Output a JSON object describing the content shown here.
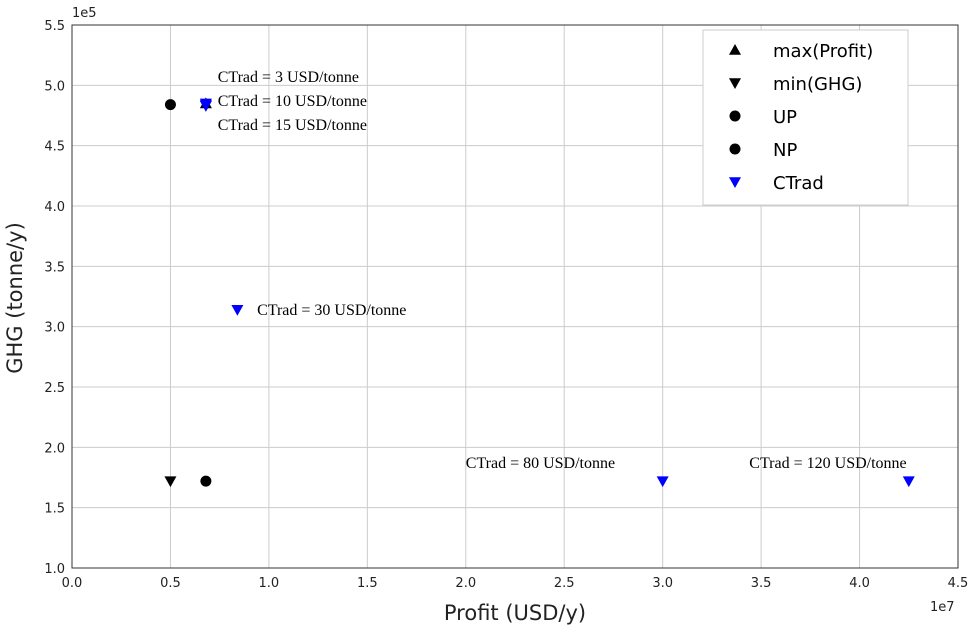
{
  "chart_data": {
    "type": "scatter",
    "xlabel": "Profit (USD/y)",
    "ylabel": "GHG (tonne/y)",
    "x_offset_label": "1e7",
    "y_offset_label": "1e5",
    "xlim": [
      0,
      4.5
    ],
    "ylim": [
      1.0,
      5.5
    ],
    "x_ticks": [
      "0.0",
      "0.5",
      "1.0",
      "1.5",
      "2.0",
      "2.5",
      "3.0",
      "3.5",
      "4.0",
      "4.5"
    ],
    "y_ticks": [
      "1.0",
      "1.5",
      "2.0",
      "2.5",
      "3.0",
      "3.5",
      "4.0",
      "4.5",
      "5.0",
      "5.5"
    ],
    "grid": true,
    "legend_position": "top-right",
    "series": [
      {
        "name": "max(Profit)",
        "marker": "triangle-up",
        "color": "#000000",
        "points": [
          [
            0.68,
            4.85
          ]
        ]
      },
      {
        "name": "min(GHG)",
        "marker": "triangle-down",
        "color": "#000000",
        "points": [
          [
            0.5,
            1.72
          ]
        ]
      },
      {
        "name": "UP",
        "marker": "circle",
        "color": "#000000",
        "points": [
          [
            0.5,
            4.84
          ]
        ]
      },
      {
        "name": "NP",
        "marker": "circle",
        "color": "#000000",
        "points": [
          [
            0.68,
            1.72
          ]
        ]
      },
      {
        "name": "CTrad",
        "marker": "triangle-down",
        "color": "#0000ff",
        "points": [
          [
            0.68,
            4.85
          ],
          [
            0.68,
            4.84
          ],
          [
            0.68,
            4.83
          ],
          [
            0.84,
            3.14
          ],
          [
            3.0,
            1.72
          ],
          [
            4.25,
            1.72
          ]
        ]
      }
    ],
    "annotations": [
      {
        "text": "CTrad = 3 USD/tonne",
        "x": 0.74,
        "y": 5.07
      },
      {
        "text": "CTrad = 10 USD/tonne",
        "x": 0.74,
        "y": 4.87
      },
      {
        "text": "CTrad = 15 USD/tonne",
        "x": 0.74,
        "y": 4.67
      },
      {
        "text": "CTrad = 30 USD/tonne",
        "x": 0.94,
        "y": 3.14
      },
      {
        "text": "CTrad = 80 USD/tonne",
        "x": 2.0,
        "y": 1.87
      },
      {
        "text": "CTrad = 120 USD/tonne",
        "x": 3.44,
        "y": 1.87
      }
    ]
  }
}
